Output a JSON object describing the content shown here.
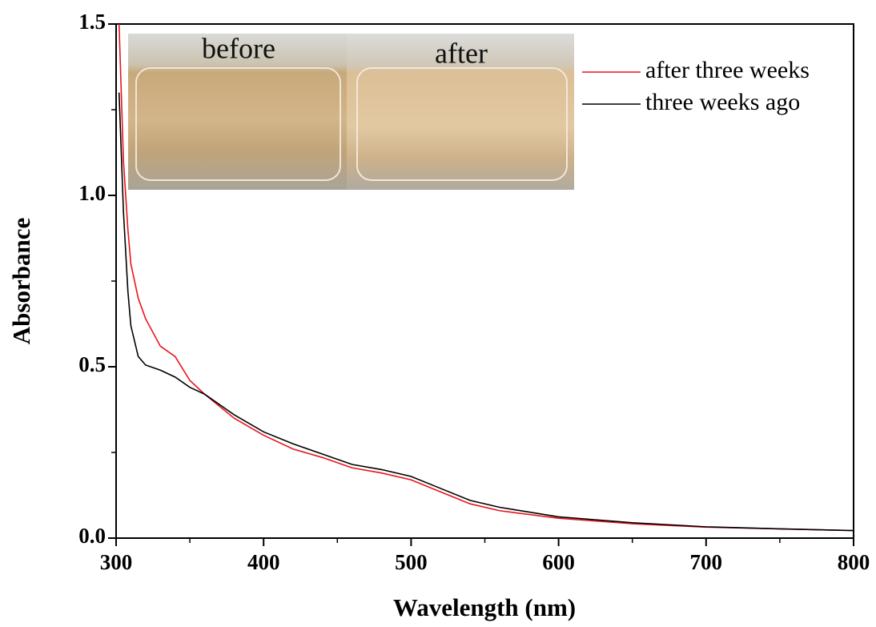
{
  "chart_data": {
    "type": "line",
    "x_label": "Wavelength (nm)",
    "y_label": "Absorbance",
    "annotations": [
      "before",
      "after"
    ],
    "x": [
      302,
      305,
      308,
      310,
      315,
      320,
      330,
      340,
      350,
      360,
      380,
      400,
      420,
      440,
      460,
      480,
      500,
      520,
      540,
      560,
      600,
      650,
      700,
      750,
      800
    ],
    "series": [
      {
        "name": "after three weeks",
        "color": "#e8141b",
        "values": [
          1.5,
          1.1,
          0.9,
          0.8,
          0.7,
          0.64,
          0.56,
          0.53,
          0.46,
          0.42,
          0.35,
          0.3,
          0.26,
          0.235,
          0.205,
          0.19,
          0.17,
          0.135,
          0.1,
          0.08,
          0.058,
          0.042,
          0.032,
          0.027,
          0.022
        ]
      },
      {
        "name": "three weeks ago",
        "color": "#000000",
        "values": [
          1.3,
          0.95,
          0.72,
          0.62,
          0.53,
          0.505,
          0.49,
          0.47,
          0.44,
          0.42,
          0.36,
          0.31,
          0.275,
          0.245,
          0.215,
          0.2,
          0.18,
          0.145,
          0.11,
          0.09,
          0.062,
          0.045,
          0.033,
          0.027,
          0.022
        ]
      }
    ],
    "xlim": [
      300,
      800
    ],
    "ylim": [
      0,
      1.5
    ],
    "xticks": [
      300,
      400,
      500,
      600,
      700,
      800
    ],
    "xminorticks": [
      350,
      450,
      550,
      650,
      750
    ],
    "yticks": [
      {
        "value": 0,
        "label": "0.0"
      },
      0.5,
      {
        "value": 1,
        "label": "1.0"
      },
      {
        "value": 1.5,
        "label": "1.5"
      }
    ],
    "yminorticks": [
      0.25,
      0.75,
      1.25
    ],
    "legend": "top-right",
    "grid": false
  }
}
